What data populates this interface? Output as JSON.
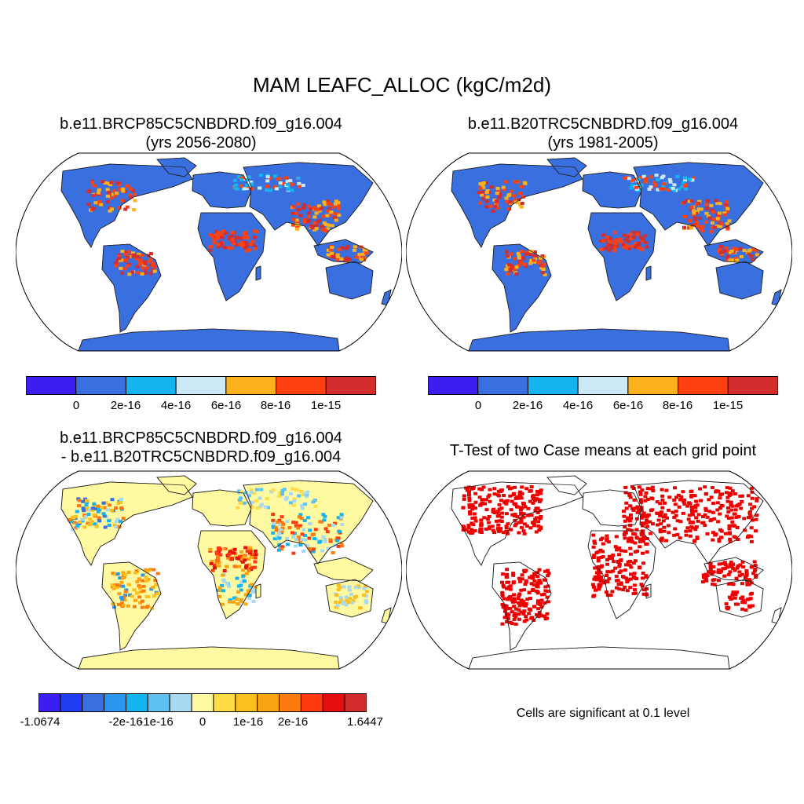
{
  "main_title": "MAM LEAFC_ALLOC (kgC/m2d)",
  "colors": {
    "base_scale": [
      "#3b1ff2",
      "#3a6fe0",
      "#14b4f0",
      "#cce8f7",
      "#fbb21c",
      "#ff4111",
      "#d52d2d"
    ],
    "diff_scale": [
      "#3b1ff2",
      "#1f3cf0",
      "#3a6fe0",
      "#2a96ef",
      "#13b4ef",
      "#5dc2ef",
      "#a7daf2",
      "#fff9a2",
      "#ffdb46",
      "#fbbf1e",
      "#fba412",
      "#fd7a0f",
      "#ff3a12",
      "#e60f0f",
      "#d12c2c"
    ],
    "significant": "#ee0000",
    "ocean": "#ffffff"
  },
  "panels": {
    "top_left": {
      "title_line1": "b.e11.BRCP85C5CNBDRD.f09_g16.004",
      "title_line2": "(yrs 2056-2080)",
      "colorbar_labels": [
        "0",
        "2e-16",
        "4e-16",
        "6e-16",
        "8e-16",
        "1e-15"
      ]
    },
    "top_right": {
      "title_line1": "b.e11.B20TRC5CNBDRD.f09_g16.004",
      "title_line2": "(yrs 1981-2005)",
      "colorbar_labels": [
        "0",
        "2e-16",
        "4e-16",
        "6e-16",
        "8e-16",
        "1e-15"
      ]
    },
    "bottom_left": {
      "title_line1": "b.e11.BRCP85C5CNBDRD.f09_g16.004",
      "title_line2": "- b.e11.B20TRC5CNBDRD.f09_g16.004",
      "colorbar_labels": [
        "-1.0674",
        "-2e-16",
        "-1e-16",
        "0",
        "1e-16",
        "2e-16",
        "1.6447"
      ]
    },
    "bottom_right": {
      "title_line1": "T-Test of two Case means at each grid point",
      "note": "Cells are significant at 0.1 level"
    }
  }
}
